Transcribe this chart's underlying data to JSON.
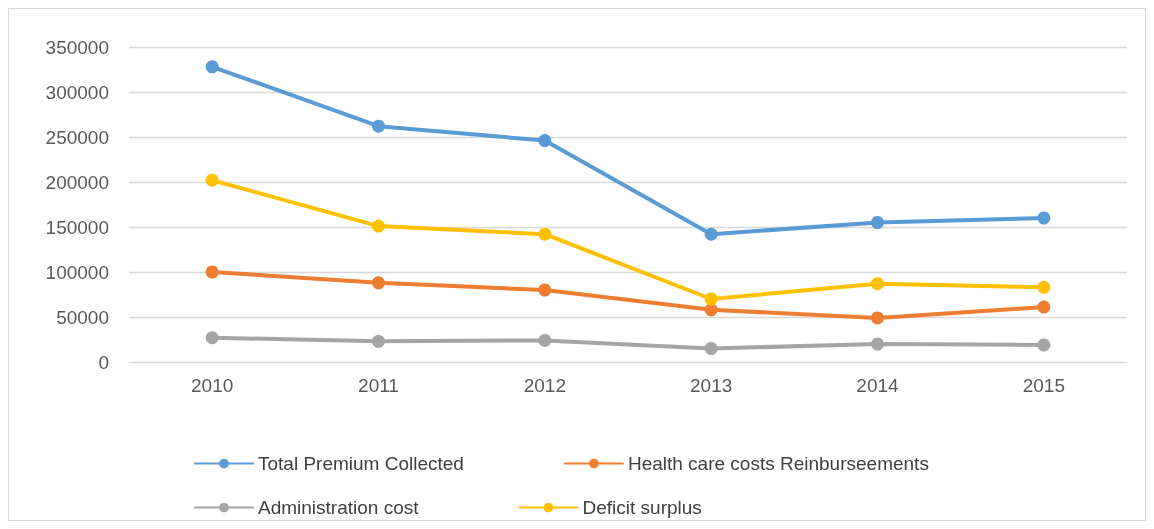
{
  "chart_data": {
    "type": "line",
    "categories": [
      "2010",
      "2011",
      "2012",
      "2013",
      "2014",
      "2015"
    ],
    "series": [
      {
        "name": "Total Premium Collected",
        "color": "#5b9bd5",
        "values": [
          328000,
          262000,
          246000,
          142000,
          155000,
          160000
        ]
      },
      {
        "name": "Health care costs Reinburseements",
        "color": "#ed7d31",
        "values": [
          100000,
          88000,
          80000,
          58000,
          49000,
          61000
        ]
      },
      {
        "name": "Administration cost",
        "color": "#a5a5a5",
        "values": [
          27000,
          23000,
          24000,
          15000,
          20000,
          19000
        ]
      },
      {
        "name": "Deficit surplus",
        "color": "#ffc000",
        "values": [
          202000,
          151000,
          142000,
          70000,
          87000,
          83000
        ]
      }
    ],
    "ylim": [
      0,
      350000
    ],
    "yticks": [
      0,
      50000,
      100000,
      150000,
      200000,
      250000,
      300000,
      350000
    ],
    "grid": "y",
    "legend": "bottom",
    "marker": "circle",
    "line_style": "solid"
  }
}
